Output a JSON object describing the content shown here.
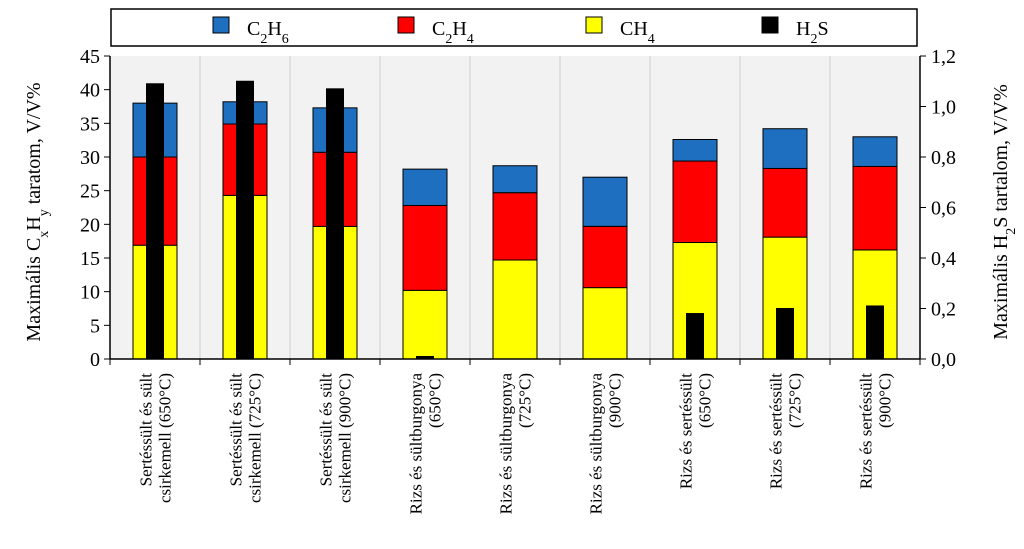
{
  "chart_data": {
    "type": "bar",
    "stacked": true,
    "categories": [
      [
        "Sertéssült és sült",
        "csirkemell (650°C)"
      ],
      [
        "Sertéssült és sült",
        "csirkemell (725°C)"
      ],
      [
        "Sertéssült és sült",
        "csirkemell (900°C)"
      ],
      [
        "Rizs és sültburgonya",
        "(650°C)"
      ],
      [
        "Rizs és sültburgonya",
        "(725°C)"
      ],
      [
        "Rizs és sültburgonya",
        "(900°C)"
      ],
      [
        "Rizs és sertéssült",
        "(650°C)"
      ],
      [
        "Rizs és sertéssült",
        "(725°C)"
      ],
      [
        "Rizs és sertéssült",
        "(900°C)"
      ]
    ],
    "series": [
      {
        "name": "CH4",
        "legend_main": "CH",
        "legend_sub": "4",
        "color": "#ffff00",
        "axis": "left",
        "values": [
          16.9,
          24.3,
          19.7,
          10.2,
          14.7,
          10.6,
          17.3,
          18.1,
          16.2
        ]
      },
      {
        "name": "C2H4",
        "legend_main": "C",
        "legend_sub": "2",
        "legend_main2": "H",
        "legend_sub2": "4",
        "color": "#ff0000",
        "axis": "left",
        "values": [
          13.1,
          10.6,
          11.0,
          12.6,
          10.0,
          9.1,
          12.1,
          10.2,
          12.4
        ]
      },
      {
        "name": "C2H6",
        "legend_main": "C",
        "legend_sub": "2",
        "legend_main2": "H",
        "legend_sub2": "6",
        "color": "#1f6fc0",
        "axis": "left",
        "values": [
          8.0,
          3.3,
          6.6,
          5.4,
          4.0,
          7.3,
          3.2,
          5.9,
          4.4
        ]
      },
      {
        "name": "H2S",
        "legend_main": "H",
        "legend_sub": "2",
        "legend_main2": "S",
        "legend_sub2": "",
        "color": "#000000",
        "axis": "right",
        "values": [
          1.09,
          1.1,
          1.07,
          0.01,
          0.0,
          0.0,
          0.18,
          0.2,
          0.21
        ]
      }
    ],
    "legend_order": [
      "C2H6",
      "C2H4",
      "CH4",
      "H2S"
    ],
    "y_left": {
      "label_parts": [
        "Maximális C",
        "x",
        "H",
        "y",
        " taratom, V/V%"
      ],
      "range": [
        0,
        45
      ],
      "ticks": [
        "0",
        "5",
        "10",
        "15",
        "20",
        "25",
        "30",
        "35",
        "40",
        "45"
      ]
    },
    "y_right": {
      "label_parts": [
        "Maximális H",
        "2",
        "S tartalom, V/V%"
      ],
      "range": [
        0,
        1.2
      ],
      "ticks": [
        "0,0",
        "0,2",
        "0,4",
        "0,6",
        "0,8",
        "1,0",
        "1,2"
      ]
    },
    "grid": "vertical",
    "legend_position": "top"
  }
}
